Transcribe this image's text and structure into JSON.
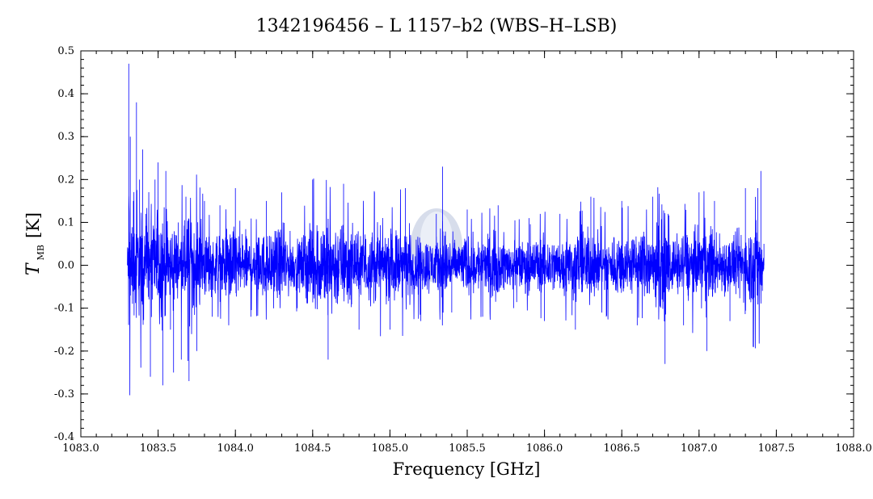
{
  "chart_data": {
    "type": "line",
    "title": "1342196456 – L 1157–b2 (WBS–H–LSB)",
    "xlabel": "Frequency [GHz]",
    "ylabel": "T",
    "ylabel_subscript": "MB",
    "ylabel_unit": "[K]",
    "xlim": [
      1083.0,
      1088.0
    ],
    "ylim": [
      -0.4,
      0.5
    ],
    "x_ticks": [
      "1083.0",
      "1083.5",
      "1084.0",
      "1084.5",
      "1085.0",
      "1085.5",
      "1086.0",
      "1086.5",
      "1087.0",
      "1087.5",
      "1088.0"
    ],
    "y_ticks": [
      "-0.4",
      "-0.3",
      "-0.2",
      "-0.1",
      "0.0",
      "0.1",
      "0.2",
      "0.3",
      "0.4",
      "0.5"
    ],
    "x_tick_values": [
      1083.0,
      1083.5,
      1084.0,
      1084.5,
      1085.0,
      1085.5,
      1086.0,
      1086.5,
      1087.0,
      1087.5,
      1088.0
    ],
    "y_tick_values": [
      -0.4,
      -0.3,
      -0.2,
      -0.1,
      0.0,
      0.1,
      0.2,
      0.3,
      0.4,
      0.5
    ],
    "x_minor_step": 0.1,
    "y_minor_step": 0.02,
    "grid": false,
    "line_color": "#0000ff",
    "x_range_data": [
      1083.3,
      1087.42
    ],
    "series": [
      {
        "x": [
          1083.3,
          1083.31,
          1083.32,
          1083.34,
          1083.36,
          1083.38,
          1083.4,
          1083.42,
          1083.45,
          1083.48,
          1083.5,
          1083.53,
          1083.55,
          1083.58,
          1083.6,
          1083.63,
          1083.65,
          1083.68,
          1083.7,
          1083.75,
          1083.8,
          1083.85,
          1083.9,
          1084.0,
          1084.1,
          1084.2,
          1084.3,
          1084.4,
          1084.5,
          1084.6,
          1084.7,
          1084.8,
          1084.9,
          1085.0,
          1085.1,
          1085.2,
          1085.3,
          1085.34,
          1085.4,
          1085.5,
          1085.6,
          1085.7,
          1085.8,
          1085.9,
          1086.0,
          1086.1,
          1086.2,
          1086.3,
          1086.4,
          1086.5,
          1086.6,
          1086.7,
          1086.78,
          1086.8,
          1086.9,
          1087.0,
          1087.05,
          1087.1,
          1087.2,
          1087.3,
          1087.35,
          1087.38,
          1087.4,
          1087.41,
          1087.42
        ],
        "y": [
          0.0,
          0.47,
          0.3,
          0.15,
          0.38,
          0.2,
          0.27,
          0.12,
          -0.26,
          0.2,
          0.24,
          -0.28,
          0.22,
          -0.15,
          -0.25,
          0.1,
          -0.22,
          0.16,
          -0.27,
          -0.2,
          0.15,
          -0.12,
          0.14,
          0.18,
          -0.12,
          0.15,
          0.17,
          -0.1,
          0.2,
          -0.22,
          0.19,
          -0.15,
          0.17,
          -0.15,
          0.18,
          -0.13,
          0.12,
          0.23,
          -0.11,
          0.13,
          -0.12,
          0.14,
          -0.1,
          0.11,
          -0.13,
          0.12,
          -0.15,
          0.16,
          -0.12,
          0.15,
          -0.14,
          0.16,
          -0.23,
          0.12,
          -0.14,
          0.17,
          -0.2,
          0.15,
          -0.13,
          0.18,
          -0.19,
          0.18,
          0.22,
          -0.06,
          0.05
        ]
      }
    ]
  }
}
